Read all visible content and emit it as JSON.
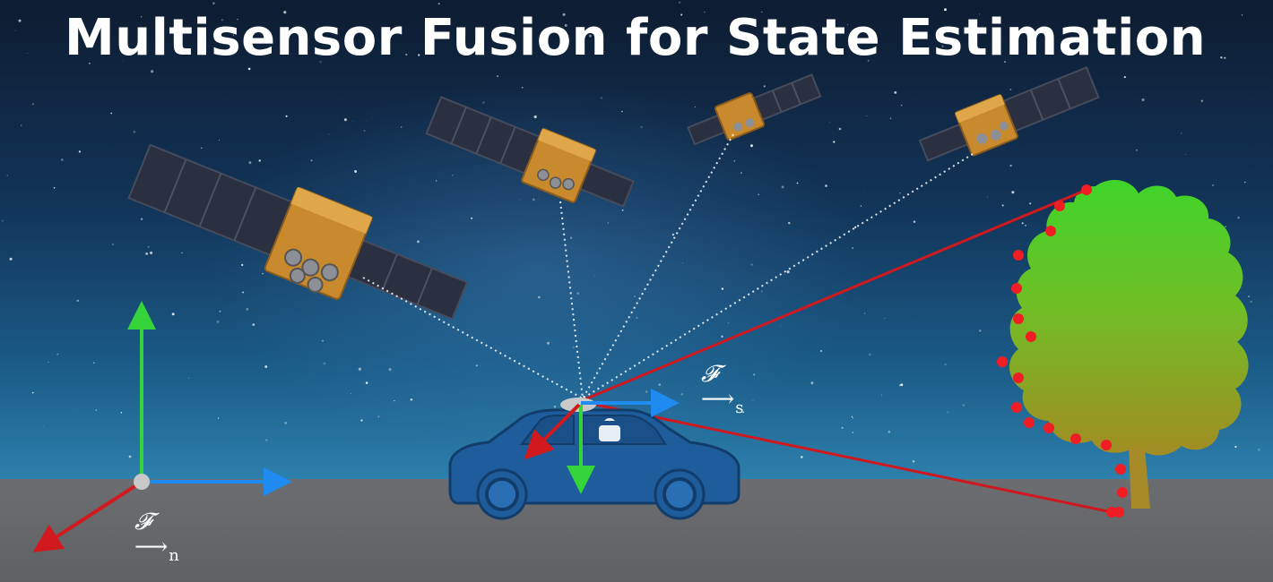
{
  "title": "Multisensor Fusion for State Estimation",
  "frames": {
    "navigation": {
      "letter": "𝓕",
      "subscript": "n"
    },
    "sensor": {
      "letter": "𝓕",
      "subscript": "s"
    }
  },
  "colors": {
    "axis_up": "#35d43a",
    "axis_right": "#1f8bf0",
    "axis_depth": "#d2191d",
    "gnss_link": "#ffffff",
    "lidar_ray": "#d0181f",
    "lidar_point": "#f01e24",
    "car_body": "#1f5c9b",
    "tree_canopy_top": "#3fd42a",
    "tree_canopy_bottom": "#9c8d22",
    "trunk": "#a58a27",
    "satellite_body": "#c98a2d",
    "solar_panel": "#2a3040"
  },
  "icons": [
    "satellite-icon",
    "car-icon",
    "tree-icon",
    "gnss-antenna-icon"
  ]
}
